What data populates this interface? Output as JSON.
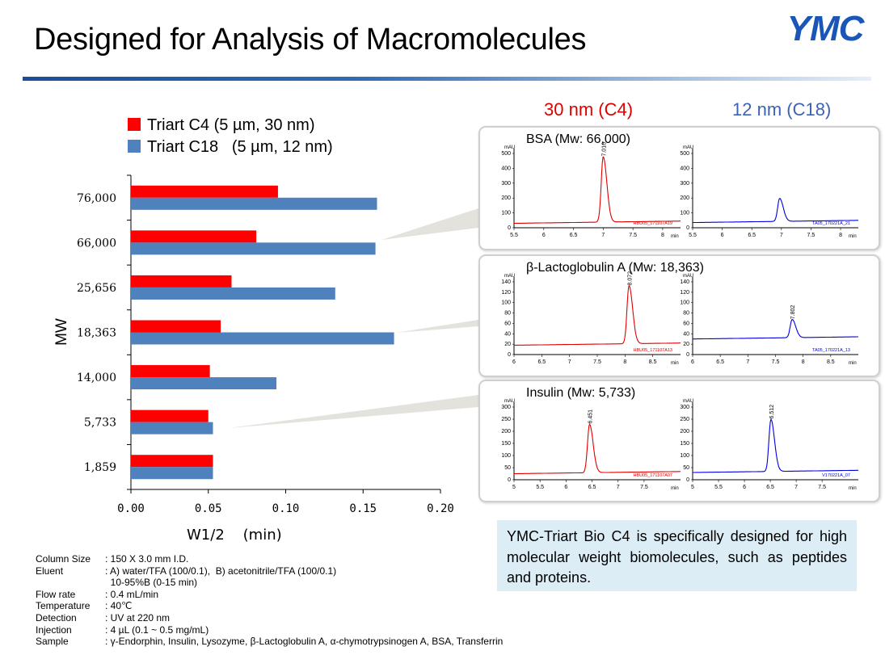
{
  "page": {
    "title": "Designed for Analysis of Macromolecules",
    "logo_text": "YMC"
  },
  "chart_data": [
    {
      "type": "bar",
      "orientation": "horizontal",
      "categories": [
        "76,000",
        "66,000",
        "25,656",
        "18,363",
        "14,000",
        "5,733",
        "1,859"
      ],
      "series": [
        {
          "name": "Triart C4 (5 µm, 30 nm)",
          "color": "#ff0000",
          "values": [
            0.095,
            0.081,
            0.065,
            0.058,
            0.051,
            0.05,
            0.053
          ]
        },
        {
          "name": "Triart C18   (5 µm, 12 nm)",
          "color": "#4f81bd",
          "values": [
            0.159,
            0.158,
            0.132,
            0.17,
            0.094,
            0.053,
            0.053
          ]
        }
      ],
      "xlabel": "W1/2    (min)",
      "ylabel": "MW",
      "xlim": [
        0,
        0.2
      ],
      "xticks": [
        "0.00",
        "0.05",
        "0.10",
        "0.15",
        "0.20"
      ],
      "legend": "top"
    },
    {
      "type": "line",
      "panel": "BSA (Mw: 66,000)",
      "column": "30 nm (C4)",
      "color": "#e00000",
      "ylabel": "mAU",
      "xlabel": "min",
      "xlim": [
        5.5,
        8.3
      ],
      "ylim": [
        0,
        500
      ],
      "xticks": [
        "5.5",
        "6",
        "6.5",
        "7",
        "7.5",
        "8"
      ],
      "yticks": [
        "0",
        "100",
        "200",
        "300",
        "400",
        "500"
      ],
      "peak_x": 7.0,
      "peak_y": 470,
      "peak_label": "7.016",
      "baseline": 30,
      "file_label": "HBU05_171107A19"
    },
    {
      "type": "line",
      "panel": "BSA (Mw: 66,000)",
      "column": "12 nm (C18)",
      "color": "#0000e0",
      "ylabel": "mAU",
      "xlabel": "min",
      "xlim": [
        5.5,
        8.3
      ],
      "ylim": [
        0,
        500
      ],
      "xticks": [
        "5.5",
        "6",
        "6.5",
        "7",
        "7.5",
        "8"
      ],
      "yticks": [
        "0",
        "100",
        "200",
        "300",
        "400",
        "500"
      ],
      "peak_x": 6.97,
      "peak_y": 190,
      "peak_label": "",
      "baseline": 35,
      "file_label": "TA05_170221A_21"
    },
    {
      "type": "line",
      "panel": "β-Lactoglobulin A (Mw: 18,363)",
      "column": "30 nm (C4)",
      "color": "#e00000",
      "ylabel": "mAU",
      "xlabel": "min",
      "xlim": [
        6,
        9.0
      ],
      "ylim": [
        0,
        140
      ],
      "xticks": [
        "6",
        "6.5",
        "7",
        "7.5",
        "8",
        "8.5"
      ],
      "yticks": [
        "0",
        "20",
        "40",
        "60",
        "80",
        "100",
        "120",
        "140"
      ],
      "peak_x": 8.072,
      "peak_y": 130,
      "peak_label": "8.072",
      "baseline": 18,
      "file_label": "HBU05_171107A13"
    },
    {
      "type": "line",
      "panel": "β-Lactoglobulin A (Mw: 18,363)",
      "column": "12 nm (C18)",
      "color": "#0000e0",
      "ylabel": "mAU",
      "xlabel": "min",
      "xlim": [
        6,
        9.0
      ],
      "ylim": [
        0,
        140
      ],
      "xticks": [
        "6",
        "6.5",
        "7",
        "7.5",
        "8",
        "8.5"
      ],
      "yticks": [
        "0",
        "20",
        "40",
        "60",
        "80",
        "100",
        "120",
        "140"
      ],
      "peak_x": 7.802,
      "peak_y": 65,
      "peak_label": "7.802",
      "baseline": 30,
      "file_label": "TA05_170221A_13"
    },
    {
      "type": "line",
      "panel": "Insulin (Mw: 5,733)",
      "column": "30 nm (C4)",
      "color": "#e00000",
      "ylabel": "mAU",
      "xlabel": "min",
      "xlim": [
        5,
        8.2
      ],
      "ylim": [
        0,
        300
      ],
      "xticks": [
        "5",
        "5.5",
        "6",
        "6.5",
        "7",
        "7.5"
      ],
      "yticks": [
        "0",
        "50",
        "100",
        "150",
        "200",
        "250",
        "300"
      ],
      "peak_x": 6.451,
      "peak_y": 225,
      "peak_label": "6.451",
      "baseline": 25,
      "file_label": "HBU05_171107A07"
    },
    {
      "type": "line",
      "panel": "Insulin (Mw: 5,733)",
      "column": "12 nm (C18)",
      "color": "#0000e0",
      "ylabel": "mAU",
      "xlabel": "min",
      "xlim": [
        5,
        8.2
      ],
      "ylim": [
        0,
        300
      ],
      "xticks": [
        "5",
        "5.5",
        "6",
        "6.5",
        "7",
        "7.5"
      ],
      "yticks": [
        "0",
        "50",
        "100",
        "150",
        "200",
        "250",
        "300"
      ],
      "peak_x": 6.512,
      "peak_y": 245,
      "peak_label": "6.512",
      "baseline": 30,
      "file_label": "V170221A_07"
    }
  ],
  "columns": {
    "c4": "30 nm (C4)",
    "c18": "12 nm (C18)"
  },
  "panels": [
    {
      "title": "BSA (Mw: 66,000)"
    },
    {
      "title": "β-Lactoglobulin A (Mw: 18,363)"
    },
    {
      "title": "Insulin (Mw: 5,733)"
    }
  ],
  "conditions": [
    {
      "label": "Column Size",
      "value": ": 150 X 3.0 mm I.D."
    },
    {
      "label": "Eluent",
      "value": ": A) water/TFA (100/0.1),  B) acetonitrile/TFA (100/0.1)"
    },
    {
      "label": "",
      "value": "  10-95%B (0-15 min)"
    },
    {
      "label": "Flow rate",
      "value": ": 0.4 mL/min"
    },
    {
      "label": "Temperature",
      "value": ": 40℃"
    },
    {
      "label": "Detection",
      "value": ": UV at 220 nm"
    },
    {
      "label": "Injection",
      "value": ": 4 µL (0.1 ~ 0.5 mg/mL)"
    },
    {
      "label": "Sample",
      "value": ": γ-Endorphin, Insulin, Lysozyme, β-Lactoglobulin A, α-chymotrypsinogen A, BSA, Transferrin"
    }
  ],
  "note": "YMC-Triart Bio C4 is specifically designed for high molecular weight biomolecules, such as peptides and proteins."
}
